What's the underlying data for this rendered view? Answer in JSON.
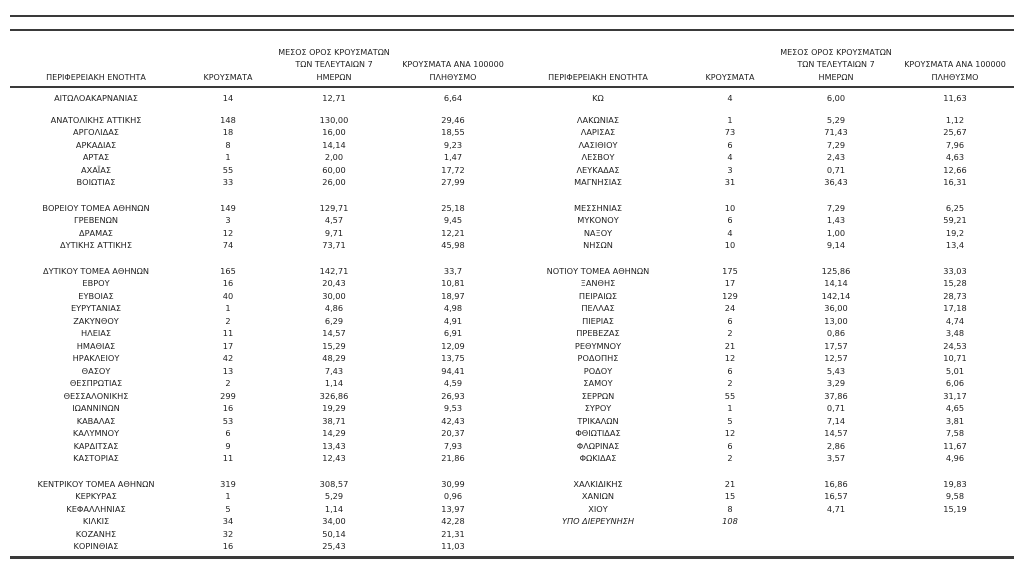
{
  "theme": {
    "rule_color": "#3a3a3a",
    "text_color": "#212121",
    "background_color": "#ffffff"
  },
  "table": {
    "headers": {
      "region": "ΠΕΡΙΦΕΡΕΙΑΚΗ ΕΝΟΤΗΤΑ",
      "cases": "ΚΡΟΥΣΜΑΤΑ",
      "avg7_line1": "ΜΕΣΟΣ ΟΡΟΣ ΚΡΟΥΣΜΑΤΩΝ",
      "avg7_line2": "ΤΩΝ ΤΕΛΕΥΤΑΙΩΝ 7",
      "avg7_line3": "ΗΜΕΡΩΝ",
      "per100k_line1": "ΚΡΟΥΣΜΑΤΑ ΑΝΑ 100000",
      "per100k_line2": "ΠΛΗΘΥΣΜΟ"
    },
    "left_groups": [
      [
        {
          "name": "ΑΙΤΩΛΟΑΚΑΡΝΑΝΙΑΣ",
          "cases": "14",
          "avg7": "12,71",
          "per100k": "6,64"
        }
      ],
      [
        {
          "name": "ΑΝΑΤΟΛΙΚΗΣ ΑΤΤΙΚΗΣ",
          "cases": "148",
          "avg7": "130,00",
          "per100k": "29,46"
        },
        {
          "name": "ΑΡΓΟΛΙΔΑΣ",
          "cases": "18",
          "avg7": "16,00",
          "per100k": "18,55"
        },
        {
          "name": "ΑΡΚΑΔΙΑΣ",
          "cases": "8",
          "avg7": "14,14",
          "per100k": "9,23"
        },
        {
          "name": "ΑΡΤΑΣ",
          "cases": "1",
          "avg7": "2,00",
          "per100k": "1,47"
        },
        {
          "name": "ΑΧΑΪΑΣ",
          "cases": "55",
          "avg7": "60,00",
          "per100k": "17,72"
        },
        {
          "name": "ΒΟΙΩΤΙΑΣ",
          "cases": "33",
          "avg7": "26,00",
          "per100k": "27,99"
        }
      ],
      [
        {
          "name": "ΒΟΡΕΙΟΥ ΤΟΜΕΑ ΑΘΗΝΩΝ",
          "cases": "149",
          "avg7": "129,71",
          "per100k": "25,18"
        },
        {
          "name": "ΓΡΕΒΕΝΩΝ",
          "cases": "3",
          "avg7": "4,57",
          "per100k": "9,45"
        },
        {
          "name": "ΔΡΑΜΑΣ",
          "cases": "12",
          "avg7": "9,71",
          "per100k": "12,21"
        },
        {
          "name": "ΔΥΤΙΚΗΣ ΑΤΤΙΚΗΣ",
          "cases": "74",
          "avg7": "73,71",
          "per100k": "45,98"
        }
      ],
      [
        {
          "name": "ΔΥΤΙΚΟΥ ΤΟΜΕΑ ΑΘΗΝΩΝ",
          "cases": "165",
          "avg7": "142,71",
          "per100k": "33,7"
        },
        {
          "name": "ΕΒΡΟΥ",
          "cases": "16",
          "avg7": "20,43",
          "per100k": "10,81"
        },
        {
          "name": "ΕΥΒΟΙΑΣ",
          "cases": "40",
          "avg7": "30,00",
          "per100k": "18,97"
        },
        {
          "name": "ΕΥΡΥΤΑΝΙΑΣ",
          "cases": "1",
          "avg7": "4,86",
          "per100k": "4,98"
        },
        {
          "name": "ΖΑΚΥΝΘΟΥ",
          "cases": "2",
          "avg7": "6,29",
          "per100k": "4,91"
        },
        {
          "name": "ΗΛΕΙΑΣ",
          "cases": "11",
          "avg7": "14,57",
          "per100k": "6,91"
        },
        {
          "name": "ΗΜΑΘΙΑΣ",
          "cases": "17",
          "avg7": "15,29",
          "per100k": "12,09"
        },
        {
          "name": "ΗΡΑΚΛΕΙΟΥ",
          "cases": "42",
          "avg7": "48,29",
          "per100k": "13,75"
        },
        {
          "name": "ΘΑΣΟΥ",
          "cases": "13",
          "avg7": "7,43",
          "per100k": "94,41"
        },
        {
          "name": "ΘΕΣΠΡΩΤΙΑΣ",
          "cases": "2",
          "avg7": "1,14",
          "per100k": "4,59"
        },
        {
          "name": "ΘΕΣΣΑΛΟΝΙΚΗΣ",
          "cases": "299",
          "avg7": "326,86",
          "per100k": "26,93"
        },
        {
          "name": "ΙΩΑΝΝΙΝΩΝ",
          "cases": "16",
          "avg7": "19,29",
          "per100k": "9,53"
        },
        {
          "name": "ΚΑΒΑΛΑΣ",
          "cases": "53",
          "avg7": "38,71",
          "per100k": "42,43"
        },
        {
          "name": "ΚΑΛΥΜΝΟΥ",
          "cases": "6",
          "avg7": "14,29",
          "per100k": "20,37"
        },
        {
          "name": "ΚΑΡΔΙΤΣΑΣ",
          "cases": "9",
          "avg7": "13,43",
          "per100k": "7,93"
        },
        {
          "name": "ΚΑΣΤΟΡΙΑΣ",
          "cases": "11",
          "avg7": "12,43",
          "per100k": "21,86"
        }
      ],
      [
        {
          "name": "ΚΕΝΤΡΙΚΟΥ ΤΟΜΕΑ ΑΘΗΝΩΝ",
          "cases": "319",
          "avg7": "308,57",
          "per100k": "30,99"
        },
        {
          "name": "ΚΕΡΚΥΡΑΣ",
          "cases": "1",
          "avg7": "5,29",
          "per100k": "0,96"
        },
        {
          "name": "ΚΕΦΑΛΛΗΝΙΑΣ",
          "cases": "5",
          "avg7": "1,14",
          "per100k": "13,97"
        },
        {
          "name": "ΚΙΛΚΙΣ",
          "cases": "34",
          "avg7": "34,00",
          "per100k": "42,28"
        },
        {
          "name": "ΚΟΖΑΝΗΣ",
          "cases": "32",
          "avg7": "50,14",
          "per100k": "21,31"
        },
        {
          "name": "ΚΟΡΙΝΘΙΑΣ",
          "cases": "16",
          "avg7": "25,43",
          "per100k": "11,03"
        }
      ]
    ],
    "right_groups": [
      [
        {
          "name": "ΚΩ",
          "cases": "4",
          "avg7": "6,00",
          "per100k": "11,63"
        }
      ],
      [
        {
          "name": "ΛΑΚΩΝΙΑΣ",
          "cases": "1",
          "avg7": "5,29",
          "per100k": "1,12"
        },
        {
          "name": "ΛΑΡΙΣΑΣ",
          "cases": "73",
          "avg7": "71,43",
          "per100k": "25,67"
        },
        {
          "name": "ΛΑΣΙΘΙΟΥ",
          "cases": "6",
          "avg7": "7,29",
          "per100k": "7,96"
        },
        {
          "name": "ΛΕΣΒΟΥ",
          "cases": "4",
          "avg7": "2,43",
          "per100k": "4,63"
        },
        {
          "name": "ΛΕΥΚΑΔΑΣ",
          "cases": "3",
          "avg7": "0,71",
          "per100k": "12,66"
        },
        {
          "name": "ΜΑΓΝΗΣΙΑΣ",
          "cases": "31",
          "avg7": "36,43",
          "per100k": "16,31"
        }
      ],
      [
        {
          "name": "ΜΕΣΣΗΝΙΑΣ",
          "cases": "10",
          "avg7": "7,29",
          "per100k": "6,25"
        },
        {
          "name": "ΜΥΚΟΝΟΥ",
          "cases": "6",
          "avg7": "1,43",
          "per100k": "59,21"
        },
        {
          "name": "ΝΑΞΟΥ",
          "cases": "4",
          "avg7": "1,00",
          "per100k": "19,2"
        },
        {
          "name": "ΝΗΣΩΝ",
          "cases": "10",
          "avg7": "9,14",
          "per100k": "13,4"
        }
      ],
      [
        {
          "name": "ΝΟΤΙΟΥ ΤΟΜΕΑ ΑΘΗΝΩΝ",
          "cases": "175",
          "avg7": "125,86",
          "per100k": "33,03"
        },
        {
          "name": "ΞΑΝΘΗΣ",
          "cases": "17",
          "avg7": "14,14",
          "per100k": "15,28"
        },
        {
          "name": "ΠΕΙΡΑΙΩΣ",
          "cases": "129",
          "avg7": "142,14",
          "per100k": "28,73"
        },
        {
          "name": "ΠΕΛΛΑΣ",
          "cases": "24",
          "avg7": "36,00",
          "per100k": "17,18"
        },
        {
          "name": "ΠΙΕΡΙΑΣ",
          "cases": "6",
          "avg7": "13,00",
          "per100k": "4,74"
        },
        {
          "name": "ΠΡΕΒΕΖΑΣ",
          "cases": "2",
          "avg7": "0,86",
          "per100k": "3,48"
        },
        {
          "name": "ΡΕΘΥΜΝΟΥ",
          "cases": "21",
          "avg7": "17,57",
          "per100k": "24,53"
        },
        {
          "name": "ΡΟΔΟΠΗΣ",
          "cases": "12",
          "avg7": "12,57",
          "per100k": "10,71"
        },
        {
          "name": "ΡΟΔΟΥ",
          "cases": "6",
          "avg7": "5,43",
          "per100k": "5,01"
        },
        {
          "name": "ΣΑΜΟΥ",
          "cases": "2",
          "avg7": "3,29",
          "per100k": "6,06"
        },
        {
          "name": "ΣΕΡΡΩΝ",
          "cases": "55",
          "avg7": "37,86",
          "per100k": "31,17"
        },
        {
          "name": "ΣΥΡΟΥ",
          "cases": "1",
          "avg7": "0,71",
          "per100k": "4,65"
        },
        {
          "name": "ΤΡΙΚΑΛΩΝ",
          "cases": "5",
          "avg7": "7,14",
          "per100k": "3,81"
        },
        {
          "name": "ΦΘΙΩΤΙΔΑΣ",
          "cases": "12",
          "avg7": "14,57",
          "per100k": "7,58"
        },
        {
          "name": "ΦΛΩΡΙΝΑΣ",
          "cases": "6",
          "avg7": "2,86",
          "per100k": "11,67"
        },
        {
          "name": "ΦΩΚΙΔΑΣ",
          "cases": "2",
          "avg7": "3,57",
          "per100k": "4,96"
        }
      ],
      [
        {
          "name": "ΧΑΛΚΙΔΙΚΗΣ",
          "cases": "21",
          "avg7": "16,86",
          "per100k": "19,83"
        },
        {
          "name": "ΧΑΝΙΩΝ",
          "cases": "15",
          "avg7": "16,57",
          "per100k": "9,58"
        },
        {
          "name": "ΧΙΟΥ",
          "cases": "8",
          "avg7": "4,71",
          "per100k": "15,19"
        },
        {
          "name": "ΥΠΟ ΔΙΕΡΕΥΝΗΣΗ",
          "cases": "108",
          "avg7": "",
          "per100k": "",
          "italic": true
        }
      ]
    ]
  }
}
